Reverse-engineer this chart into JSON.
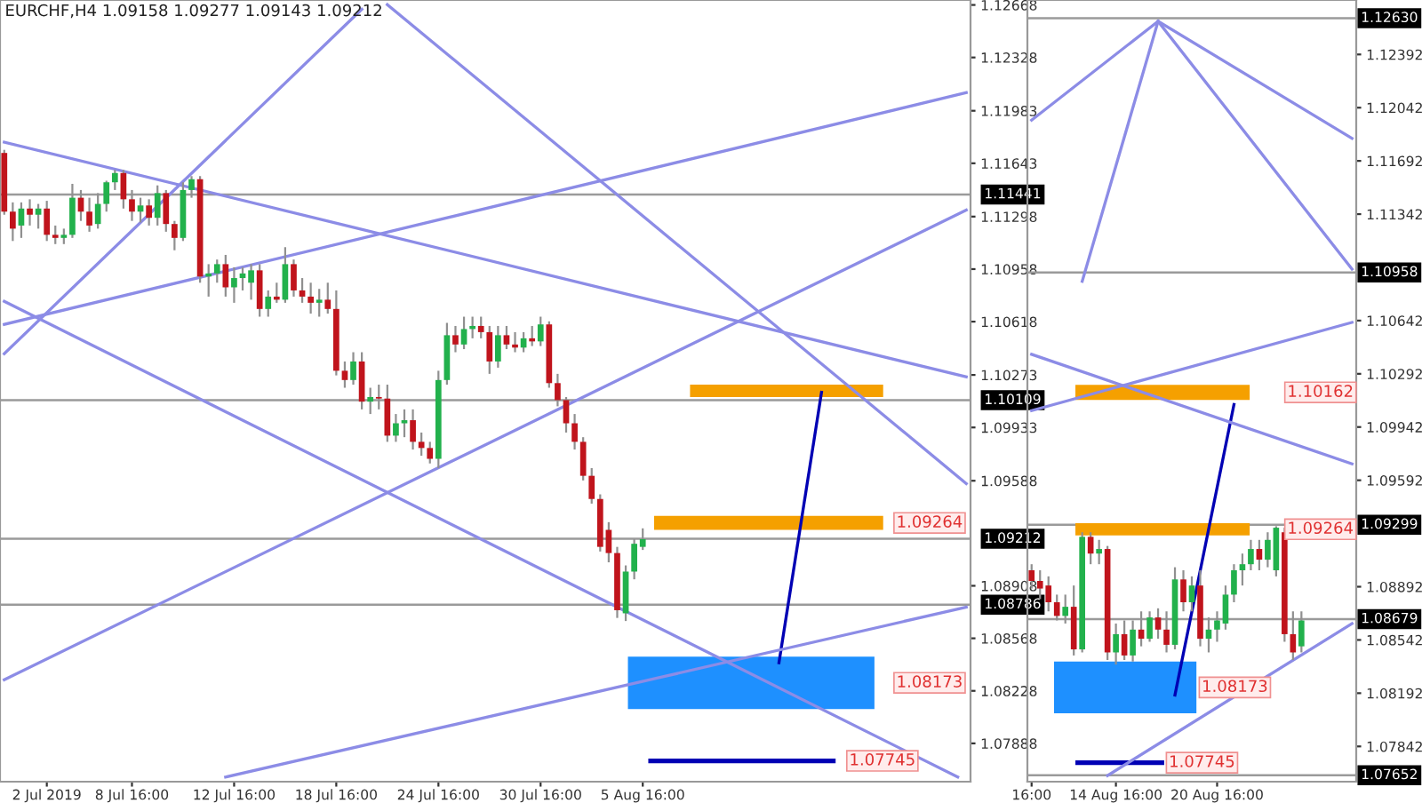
{
  "chart_data": [
    {
      "type": "candlestick",
      "title": "EURCHF,H4 1.09158 1.09277 1.09143 1.09212",
      "categories": [
        null,
        null,
        null,
        null,
        null,
        "2 Jul 2019",
        null,
        null,
        null,
        null,
        null,
        null,
        null,
        null,
        null,
        "8 Jul 16:00",
        null,
        null,
        null,
        null,
        null,
        null,
        null,
        null,
        null,
        null,
        null,
        "12 Jul 16:00",
        null,
        null,
        null,
        null,
        null,
        null,
        null,
        null,
        null,
        null,
        null,
        "18 Jul 16:00",
        null,
        null,
        null,
        null,
        null,
        null,
        null,
        null,
        null,
        null,
        null,
        "24 Jul 16:00",
        null,
        null,
        null,
        null,
        null,
        null,
        null,
        null,
        null,
        null,
        null,
        "30 Jul 16:00",
        null,
        null,
        null,
        null,
        null,
        null,
        null,
        null,
        null,
        null,
        null,
        "5 Aug 16:00",
        null,
        null,
        null,
        null,
        null,
        null,
        null,
        null,
        null,
        null,
        null,
        null,
        null,
        null,
        null,
        null,
        null,
        null,
        null,
        null,
        null,
        null,
        null,
        null,
        null,
        null,
        null,
        null,
        null,
        null,
        null,
        null,
        null,
        null,
        null,
        null,
        null,
        null
      ],
      "ohlc": [
        [
          1.1171,
          1.1173,
          1.1131,
          1.1133
        ],
        [
          1.1133,
          1.1139,
          1.1114,
          1.1122
        ],
        [
          1.1124,
          1.1139,
          1.1116,
          1.1135
        ],
        [
          1.1135,
          1.1141,
          1.1124,
          1.1131
        ],
        [
          1.1131,
          1.1138,
          1.1122,
          1.1135
        ],
        [
          1.1135,
          1.114,
          1.1114,
          1.1118
        ],
        [
          1.1118,
          1.1124,
          1.1112,
          1.1116
        ],
        [
          1.1116,
          1.1122,
          1.1112,
          1.1118
        ],
        [
          1.1118,
          1.1151,
          1.1116,
          1.1142
        ],
        [
          1.1142,
          1.1147,
          1.1127,
          1.1133
        ],
        [
          1.1133,
          1.1142,
          1.112,
          1.1124
        ],
        [
          1.1125,
          1.1145,
          1.1122,
          1.1138
        ],
        [
          1.1138,
          1.1153,
          1.1133,
          1.1152
        ],
        [
          1.1152,
          1.116,
          1.1147,
          1.1158
        ],
        [
          1.1158,
          1.116,
          1.1135,
          1.1141
        ],
        [
          1.1141,
          1.1147,
          1.1127,
          1.1133
        ],
        [
          1.1133,
          1.1142,
          1.1126,
          1.1137
        ],
        [
          1.1137,
          1.1141,
          1.1124,
          1.1129
        ],
        [
          1.1129,
          1.115,
          1.1124,
          1.1145
        ],
        [
          1.1145,
          1.1147,
          1.112,
          1.1125
        ],
        [
          1.1125,
          1.1127,
          1.1108,
          1.1116
        ],
        [
          1.1116,
          1.1152,
          1.1114,
          1.1147
        ],
        [
          1.1147,
          1.1156,
          1.1142,
          1.1154
        ],
        [
          1.1154,
          1.1156,
          1.1087,
          1.1091
        ],
        [
          1.1091,
          1.1099,
          1.1078,
          1.1093
        ],
        [
          1.1093,
          1.1102,
          1.1087,
          1.1099
        ],
        [
          1.1099,
          1.1105,
          1.1078,
          1.1084
        ],
        [
          1.1084,
          1.1097,
          1.1074,
          1.109
        ],
        [
          1.109,
          1.1097,
          1.1082,
          1.1093
        ],
        [
          1.1087,
          1.1099,
          1.1076,
          1.1095
        ],
        [
          1.1095,
          1.1099,
          1.1065,
          1.107
        ],
        [
          1.107,
          1.1082,
          1.1065,
          1.1078
        ],
        [
          1.1078,
          1.1087,
          1.1074,
          1.1076
        ],
        [
          1.1076,
          1.111,
          1.1074,
          1.1099
        ],
        [
          1.1099,
          1.1102,
          1.1078,
          1.1082
        ],
        [
          1.1082,
          1.109,
          1.1074,
          1.1078
        ],
        [
          1.1078,
          1.1087,
          1.1067,
          1.1074
        ],
        [
          1.1074,
          1.1083,
          1.1065,
          1.1076
        ],
        [
          1.1076,
          1.1087,
          1.1067,
          1.107
        ],
        [
          1.107,
          1.1082,
          1.1027,
          1.103
        ],
        [
          1.103,
          1.1036,
          1.1019,
          1.1024
        ],
        [
          1.1024,
          1.1042,
          1.1021,
          1.1036
        ],
        [
          1.1036,
          1.1042,
          1.1005,
          1.101
        ],
        [
          1.101,
          1.1019,
          1.1002,
          1.1013
        ],
        [
          1.1013,
          1.1021,
          1.1005,
          1.1012
        ],
        [
          1.1012,
          1.1021,
          1.0984,
          1.0988
        ],
        [
          1.0988,
          1.1002,
          1.0984,
          1.0996
        ],
        [
          1.0996,
          1.1005,
          1.0987,
          1.0998
        ],
        [
          1.0998,
          1.1005,
          1.0979,
          1.0984
        ],
        [
          1.0984,
          1.099,
          1.0975,
          1.098
        ],
        [
          1.098,
          1.0984,
          1.097,
          1.0973
        ],
        [
          1.0973,
          1.103,
          1.0967,
          1.1024
        ],
        [
          1.1024,
          1.1061,
          1.1021,
          1.1053
        ],
        [
          1.1053,
          1.1059,
          1.1042,
          1.1047
        ],
        [
          1.1047,
          1.1065,
          1.1044,
          1.1057
        ],
        [
          1.1057,
          1.1065,
          1.1051,
          1.1059
        ],
        [
          1.1059,
          1.1065,
          1.1051,
          1.1055
        ],
        [
          1.1055,
          1.1059,
          1.1028,
          1.1036
        ],
        [
          1.1036,
          1.1059,
          1.1032,
          1.1053
        ],
        [
          1.1053,
          1.1059,
          1.1044,
          1.1047
        ],
        [
          1.1047,
          1.1055,
          1.1042,
          1.1045
        ],
        [
          1.1045,
          1.1055,
          1.1042,
          1.1051
        ],
        [
          1.1051,
          1.1059,
          1.1046,
          1.1049
        ],
        [
          1.1049,
          1.1065,
          1.1046,
          1.106
        ],
        [
          1.106,
          1.1062,
          1.1019,
          1.1022
        ],
        [
          1.1022,
          1.1028,
          1.1007,
          1.1011
        ],
        [
          1.1011,
          1.1013,
          1.099,
          1.0996
        ],
        [
          1.0996,
          1.1002,
          1.0979,
          1.0984
        ],
        [
          1.0984,
          1.0987,
          1.0959,
          1.0962
        ],
        [
          1.0962,
          1.0967,
          1.0944,
          1.0947
        ],
        [
          1.0947,
          1.095,
          1.0913,
          1.0916
        ],
        [
          1.0927,
          1.0932,
          1.0906,
          1.0912
        ],
        [
          1.0912,
          1.0916,
          1.087,
          1.0875
        ],
        [
          1.0873,
          1.0904,
          1.0868,
          1.09
        ],
        [
          1.09,
          1.0921,
          1.0895,
          1.0918
        ],
        [
          1.0916,
          1.0928,
          1.0914,
          1.0921
        ],
        null,
        null,
        null,
        null,
        null,
        null,
        null,
        null,
        null,
        null,
        null,
        null,
        null,
        null,
        null,
        null,
        null,
        null,
        null,
        null,
        null,
        null,
        null,
        null,
        null,
        null,
        null,
        null,
        null,
        null,
        null,
        null,
        null,
        null,
        null,
        null,
        null,
        null
      ],
      "series": [
        {
          "type": "line",
          "color": "#0000b4",
          "values": [
            null,
            null,
            null,
            null,
            null,
            null,
            null,
            null,
            null,
            null,
            null,
            null,
            null,
            null,
            null,
            null,
            null,
            null,
            null,
            null,
            null,
            null,
            null,
            null,
            null,
            null,
            null,
            null,
            null,
            null,
            null,
            null,
            null,
            null,
            null,
            null,
            null,
            null,
            null,
            null,
            null,
            null,
            null,
            null,
            null,
            null,
            null,
            null,
            null,
            null,
            null,
            null,
            null,
            null,
            null,
            null,
            null,
            null,
            null,
            null,
            null,
            null,
            null,
            null,
            null,
            null,
            null,
            null,
            null,
            null,
            null,
            null,
            null,
            null,
            null,
            null,
            null,
            null,
            null,
            null,
            null,
            null,
            null,
            null,
            null,
            null,
            null,
            null,
            null,
            null,
            null,
            1.0841,
            null,
            null,
            null,
            null,
            1.1016,
            null,
            null,
            null,
            null,
            null,
            null,
            null,
            null,
            null,
            null,
            null,
            null,
            null,
            null,
            null,
            null,
            null
          ]
        },
        {
          "type": "line",
          "color": "#8c8ce6",
          "values": [
            1.1178,
            null,
            null,
            null,
            null,
            null,
            null,
            null,
            null,
            null,
            null,
            null,
            null,
            null,
            null,
            null,
            null,
            null,
            null,
            null,
            null,
            null,
            null,
            null,
            null,
            null,
            null,
            null,
            null,
            null,
            null,
            null,
            null,
            null,
            null,
            null,
            null,
            null,
            null,
            null,
            null,
            null,
            null,
            null,
            null,
            null,
            null,
            null,
            null,
            null,
            null,
            null,
            null,
            null,
            null,
            null,
            null,
            null,
            null,
            null,
            null,
            null,
            null,
            null,
            null,
            null,
            null,
            null,
            null,
            null,
            null,
            null,
            null,
            null,
            null,
            null,
            null,
            null,
            null,
            null,
            null,
            null,
            null,
            null,
            null,
            null,
            null,
            null,
            null,
            null,
            null,
            null,
            null,
            null,
            null,
            null,
            null,
            null,
            null,
            null,
            null,
            null,
            null,
            null,
            null,
            null,
            null,
            null,
            null,
            null,
            null,
            null,
            null,
            1.1026
          ]
        },
        {
          "type": "line",
          "color": "#8c8ce6",
          "values": [
            1.1075,
            null,
            null,
            null,
            null,
            null,
            null,
            null,
            null,
            null,
            null,
            null,
            null,
            null,
            null,
            null,
            null,
            null,
            null,
            null,
            null,
            null,
            null,
            null,
            null,
            null,
            null,
            null,
            null,
            null,
            null,
            null,
            null,
            null,
            null,
            null,
            null,
            null,
            null,
            null,
            null,
            null,
            null,
            null,
            null,
            null,
            null,
            null,
            null,
            null,
            null,
            null,
            null,
            null,
            null,
            null,
            null,
            null,
            null,
            null,
            null,
            null,
            null,
            null,
            null,
            null,
            null,
            null,
            null,
            null,
            null,
            null,
            null,
            null,
            null,
            null,
            null,
            null,
            null,
            null,
            null,
            null,
            null,
            null,
            null,
            null,
            null,
            null,
            null,
            null,
            null,
            null,
            null,
            null,
            null,
            null,
            null,
            null,
            null,
            null,
            null,
            null,
            null,
            null,
            null,
            null,
            null,
            null,
            null,
            null,
            null,
            null,
            1.0767,
            null
          ]
        },
        {
          "type": "line",
          "color": "#8c8ce6",
          "values": [
            1.106,
            null,
            null,
            null,
            null,
            null,
            null,
            null,
            null,
            null,
            null,
            null,
            null,
            null,
            null,
            null,
            null,
            null,
            null,
            null,
            null,
            null,
            null,
            null,
            null,
            null,
            null,
            null,
            null,
            null,
            null,
            null,
            null,
            null,
            null,
            null,
            null,
            null,
            null,
            null,
            null,
            null,
            null,
            null,
            null,
            null,
            null,
            null,
            null,
            null,
            null,
            null,
            null,
            null,
            null,
            null,
            null,
            null,
            null,
            null,
            null,
            null,
            null,
            null,
            null,
            null,
            null,
            null,
            null,
            null,
            null,
            null,
            null,
            null,
            null,
            null,
            null,
            null,
            null,
            null,
            null,
            null,
            null,
            null,
            null,
            null,
            null,
            null,
            null,
            null,
            null,
            null,
            null,
            null,
            null,
            null,
            null,
            null,
            null,
            null,
            null,
            null,
            null,
            null,
            null,
            null,
            null,
            null,
            null,
            null,
            null,
            null,
            null,
            1.121
          ]
        },
        {
          "type": "line",
          "color": "#8c8ce6",
          "values": [
            1.083,
            null,
            null,
            null,
            null,
            null,
            null,
            null,
            null,
            null,
            null,
            null,
            null,
            null,
            null,
            null,
            null,
            null,
            null,
            null,
            null,
            null,
            null,
            null,
            null,
            null,
            null,
            null,
            null,
            null,
            null,
            null,
            null,
            null,
            null,
            null,
            null,
            null,
            null,
            null,
            null,
            null,
            null,
            null,
            null,
            null,
            null,
            null,
            null,
            null,
            null,
            null,
            null,
            null,
            null,
            null,
            null,
            null,
            null,
            null,
            null,
            null,
            null,
            null,
            null,
            null,
            null,
            null,
            null,
            null,
            null,
            null,
            null,
            null,
            null,
            null,
            null,
            null,
            null,
            null,
            null,
            null,
            null,
            null,
            null,
            null,
            null,
            null,
            null,
            null,
            null,
            null,
            null,
            null,
            null,
            null,
            null,
            null,
            null,
            null,
            null,
            null,
            null,
            null,
            null,
            null,
            null,
            null,
            null,
            null,
            null,
            null,
            null,
            1.1134
          ]
        },
        {
          "type": "line",
          "color": "#8c8ce6",
          "values": [
            1.1041,
            null,
            null,
            null,
            null,
            null,
            null,
            null,
            null,
            null,
            null,
            null,
            null,
            null,
            null,
            null,
            null,
            null,
            null,
            null,
            null,
            null,
            null,
            null,
            null,
            null,
            null,
            null,
            null,
            null,
            null,
            null,
            null,
            null,
            null,
            null,
            null,
            null,
            null,
            null,
            null,
            null,
            1.1264,
            null,
            null,
            null,
            null,
            null,
            null,
            null,
            null,
            null,
            null,
            null,
            null,
            null,
            null,
            null,
            null,
            null,
            null,
            null,
            null,
            null,
            null,
            null,
            null,
            null,
            null,
            null,
            null,
            null,
            null,
            null,
            null,
            null,
            null,
            null,
            null,
            null,
            null,
            null,
            null,
            null,
            null,
            null,
            null,
            null,
            null,
            null,
            null,
            null,
            null,
            null,
            null,
            null,
            null,
            null,
            null,
            null,
            null,
            null,
            null,
            null,
            null,
            null,
            null,
            null,
            null,
            null,
            null,
            null,
            null,
            null
          ]
        },
        {
          "type": "line",
          "color": "#8c8ce6",
          "values": [
            null,
            null,
            null,
            null,
            null,
            null,
            null,
            null,
            null,
            null,
            null,
            null,
            null,
            null,
            null,
            null,
            null,
            null,
            null,
            null,
            null,
            null,
            null,
            null,
            null,
            null,
            null,
            null,
            null,
            null,
            null,
            null,
            null,
            null,
            null,
            null,
            null,
            null,
            null,
            null,
            null,
            null,
            null,
            null,
            null,
            1.1267,
            null,
            null,
            null,
            null,
            null,
            null,
            null,
            null,
            null,
            null,
            null,
            null,
            null,
            null,
            null,
            null,
            null,
            null,
            null,
            null,
            null,
            null,
            null,
            null,
            null,
            null,
            null,
            null,
            null,
            null,
            null,
            null,
            null,
            null,
            null,
            null,
            null,
            null,
            null,
            null,
            null,
            null,
            null,
            null,
            null,
            null,
            null,
            null,
            null,
            null,
            null,
            null,
            null,
            null,
            null,
            null,
            null,
            null,
            null,
            null,
            null,
            null,
            null,
            null,
            null,
            null,
            null,
            1.0957
          ]
        },
        {
          "type": "line",
          "color": "#8c8ce6",
          "values": [
            null,
            null,
            null,
            null,
            null,
            null,
            null,
            null,
            null,
            null,
            null,
            null,
            null,
            null,
            null,
            null,
            null,
            null,
            null,
            null,
            null,
            null,
            null,
            null,
            null,
            null,
            1.0767,
            null,
            null,
            null,
            null,
            null,
            null,
            null,
            null,
            null,
            null,
            null,
            null,
            null,
            null,
            null,
            null,
            null,
            null,
            null,
            null,
            null,
            null,
            null,
            null,
            null,
            null,
            null,
            null,
            null,
            null,
            null,
            null,
            null,
            null,
            null,
            null,
            null,
            null,
            null,
            null,
            null,
            null,
            null,
            null,
            null,
            null,
            null,
            null,
            null,
            null,
            null,
            null,
            null,
            null,
            null,
            null,
            null,
            null,
            null,
            null,
            null,
            null,
            null,
            null,
            null,
            null,
            null,
            null,
            null,
            null,
            null,
            null,
            null,
            null,
            null,
            null,
            null,
            null,
            null,
            null,
            null,
            null,
            null,
            null,
            null,
            null,
            1.0877
          ]
        }
      ],
      "bands": [
        {
          "axis": "y",
          "from": 1.1013,
          "to": 1.1021,
          "color": "#f5a000"
        },
        {
          "axis": "y",
          "from": 1.0927,
          "to": 1.0936,
          "color": "#f5a000",
          "label": "1.09264"
        },
        {
          "axis": "y",
          "from": 1.0811,
          "to": 1.0845,
          "color": "#1e90ff",
          "label": "1.08173"
        },
        {
          "axis": "y",
          "from": 1.0776,
          "to": 1.0779,
          "color": "#0000b4",
          "label": "1.07745"
        }
      ],
      "ylim": [
        1.0764,
        1.127
      ],
      "yticks": [
        1.12668,
        1.12328,
        1.11983,
        1.11643,
        1.11298,
        1.10958,
        1.10618,
        1.10273,
        1.09933,
        1.09588,
        1.08908,
        1.08568,
        1.08228,
        1.07888
      ],
      "ref_lines": [
        {
          "axis": "y",
          "value": 1.11441,
          "label": "1.11441"
        },
        {
          "axis": "y",
          "value": 1.10109,
          "label": "1.10109"
        },
        {
          "axis": "y",
          "value": 1.09212,
          "label": "1.09212"
        },
        {
          "axis": "y",
          "value": 1.08786,
          "label": "1.08786"
        }
      ]
    },
    {
      "type": "candlestick",
      "categories": [
        "16:00",
        null,
        null,
        null,
        null,
        null,
        null,
        null,
        null,
        null,
        "14 Aug 16:00",
        null,
        null,
        null,
        null,
        null,
        null,
        null,
        null,
        null,
        null,
        null,
        "20 Aug 16:00",
        null,
        null,
        null,
        null,
        null,
        null,
        null,
        null,
        null,
        null,
        null,
        null,
        null,
        null,
        null,
        null
      ],
      "ohlc": [
        [
          1.09,
          1.0904,
          1.0888,
          1.0893
        ],
        [
          1.0893,
          1.09,
          1.0881,
          1.0888
        ],
        [
          1.089,
          1.0896,
          1.0873,
          1.0879
        ],
        [
          1.0879,
          1.0884,
          1.0867,
          1.087
        ],
        [
          1.087,
          1.0884,
          1.0865,
          1.0876
        ],
        [
          1.0876,
          1.089,
          1.0844,
          1.0848
        ],
        [
          1.0848,
          1.0925,
          1.0846,
          1.0922
        ],
        [
          1.0922,
          1.0925,
          1.0904,
          1.0911
        ],
        [
          1.0911,
          1.092,
          1.0904,
          1.0914
        ],
        [
          1.0914,
          1.0916,
          1.0841,
          1.0846
        ],
        [
          1.0846,
          1.0865,
          1.0838,
          1.0858
        ],
        [
          1.0858,
          1.0867,
          1.0841,
          1.0844
        ],
        [
          1.0844,
          1.0867,
          1.084,
          1.0861
        ],
        [
          1.0861,
          1.0873,
          1.085,
          1.0855
        ],
        [
          1.0855,
          1.0873,
          1.0853,
          1.0869
        ],
        [
          1.0869,
          1.0875,
          1.0855,
          1.0861
        ],
        [
          1.0861,
          1.0873,
          1.0846,
          1.0851
        ],
        [
          1.0851,
          1.0902,
          1.0848,
          1.0894
        ],
        [
          1.0894,
          1.09,
          1.0873,
          1.0879
        ],
        [
          1.0879,
          1.0896,
          1.0873,
          1.089
        ],
        [
          1.089,
          1.09,
          1.085,
          1.0855
        ],
        [
          1.0855,
          1.0869,
          1.0846,
          1.0861
        ],
        [
          1.0861,
          1.0873,
          1.0853,
          1.0867
        ],
        [
          1.0865,
          1.089,
          1.0861,
          1.0884
        ],
        [
          1.0884,
          1.0904,
          1.0879,
          1.09
        ],
        [
          1.09,
          1.0911,
          1.089,
          1.0904
        ],
        [
          1.0904,
          1.092,
          1.09,
          1.0914
        ],
        [
          1.0914,
          1.092,
          1.09,
          1.0907
        ],
        [
          1.0907,
          1.0925,
          1.0902,
          1.092
        ],
        [
          1.09,
          1.0929,
          1.0896,
          1.0928
        ],
        [
          1.0925,
          1.0928,
          1.0853,
          1.0858
        ],
        [
          1.0858,
          1.0873,
          1.0841,
          1.0846
        ],
        [
          1.085,
          1.0873,
          1.0846,
          1.0867
        ],
        null,
        null,
        null,
        null,
        null,
        null
      ],
      "series": [
        {
          "type": "line",
          "color": "#0000b4",
          "values": [
            null,
            null,
            null,
            null,
            null,
            null,
            null,
            null,
            null,
            null,
            null,
            null,
            null,
            null,
            null,
            null,
            null,
            1.0818,
            null,
            null,
            null,
            null,
            null,
            null,
            1.1009,
            null,
            null,
            null,
            null,
            null,
            null,
            null,
            null,
            null,
            null,
            null,
            null,
            null,
            null
          ]
        },
        {
          "type": "line",
          "color": "#8c8ce6",
          "values": [
            1.1196,
            null,
            null,
            null,
            null,
            null,
            null,
            null,
            null,
            null,
            null,
            null,
            null,
            null,
            null,
            1.1261,
            null,
            null,
            null,
            null,
            null,
            null,
            null,
            null,
            null,
            null,
            null,
            null,
            null,
            null,
            null,
            null,
            null,
            null,
            null,
            null,
            null,
            null,
            null
          ]
        },
        {
          "type": "line",
          "color": "#8c8ce6",
          "values": [
            null,
            null,
            null,
            null,
            null,
            null,
            null,
            null,
            null,
            null,
            null,
            null,
            null,
            null,
            null,
            1.1261,
            null,
            null,
            null,
            null,
            null,
            null,
            null,
            null,
            null,
            null,
            null,
            null,
            null,
            null,
            null,
            null,
            null,
            null,
            null,
            null,
            null,
            null,
            1.1184
          ]
        },
        {
          "type": "line",
          "color": "#8c8ce6",
          "values": [
            null,
            null,
            null,
            null,
            null,
            null,
            null,
            null,
            null,
            null,
            null,
            null,
            null,
            null,
            null,
            1.1261,
            null,
            null,
            null,
            null,
            null,
            null,
            null,
            null,
            null,
            null,
            null,
            null,
            null,
            null,
            null,
            null,
            null,
            null,
            null,
            null,
            null,
            null,
            1.1098
          ]
        },
        {
          "type": "line",
          "color": "#8c8ce6",
          "values": [
            null,
            null,
            null,
            null,
            null,
            null,
            1.109,
            null,
            null,
            null,
            null,
            null,
            null,
            null,
            null,
            1.1261,
            null,
            null,
            null,
            null,
            null,
            null,
            null,
            null,
            null,
            null,
            null,
            null,
            null,
            null,
            null,
            null,
            null,
            null,
            null,
            null,
            null,
            null,
            null
          ]
        },
        {
          "type": "line",
          "color": "#8c8ce6",
          "values": [
            1.1005,
            null,
            null,
            null,
            null,
            null,
            null,
            null,
            null,
            null,
            null,
            null,
            null,
            null,
            null,
            null,
            null,
            null,
            null,
            null,
            null,
            null,
            null,
            null,
            null,
            null,
            null,
            null,
            null,
            null,
            null,
            null,
            null,
            null,
            null,
            null,
            null,
            null,
            1.1063
          ]
        },
        {
          "type": "line",
          "color": "#8c8ce6",
          "values": [
            1.1042,
            null,
            null,
            null,
            null,
            null,
            null,
            null,
            null,
            null,
            null,
            null,
            null,
            null,
            null,
            null,
            null,
            null,
            null,
            null,
            null,
            null,
            null,
            null,
            null,
            null,
            null,
            null,
            null,
            null,
            null,
            null,
            null,
            null,
            null,
            null,
            null,
            null,
            1.097
          ]
        },
        {
          "type": "line",
          "color": "#8c8ce6",
          "values": [
            null,
            null,
            null,
            null,
            null,
            null,
            null,
            null,
            null,
            1.0765,
            null,
            null,
            null,
            null,
            null,
            null,
            null,
            null,
            null,
            null,
            null,
            null,
            null,
            null,
            null,
            null,
            null,
            null,
            null,
            null,
            null,
            null,
            null,
            null,
            null,
            null,
            null,
            null,
            1.0865
          ]
        }
      ],
      "bands": [
        {
          "axis": "y",
          "from": 1.1012,
          "to": 1.1022,
          "color": "#f5a000",
          "label": "1.10162"
        },
        {
          "axis": "y",
          "from": 1.0923,
          "to": 1.0931,
          "color": "#f5a000",
          "label": "1.09264"
        },
        {
          "axis": "y",
          "from": 1.0806,
          "to": 1.084,
          "color": "#1e90ff",
          "label": "1.08173"
        },
        {
          "axis": "y",
          "from": 1.0772,
          "to": 1.0775,
          "color": "#0000b4",
          "label": "1.07745"
        }
      ],
      "ylim": [
        1.0761,
        1.1275
      ],
      "yticks": [
        1.12392,
        1.12042,
        1.11692,
        1.11342,
        1.10642,
        1.10292,
        1.09942,
        1.09592,
        1.08892,
        1.08542,
        1.08192,
        1.07842
      ],
      "ref_lines": [
        {
          "axis": "y",
          "value": 1.1263,
          "label": "1.12630"
        },
        {
          "axis": "y",
          "value": 1.10958,
          "label": "1.10958"
        },
        {
          "axis": "y",
          "value": 1.09299,
          "label": "1.09299"
        },
        {
          "axis": "y",
          "value": 1.08679,
          "label": "1.08679"
        },
        {
          "axis": "y",
          "value": 1.07652,
          "label": "1.07652"
        }
      ]
    }
  ]
}
